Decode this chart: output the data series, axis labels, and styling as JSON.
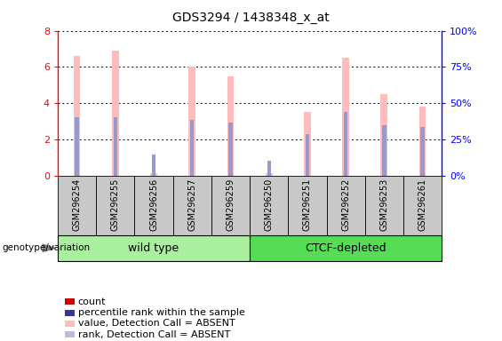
{
  "title": "GDS3294 / 1438348_x_at",
  "categories": [
    "GSM296254",
    "GSM296255",
    "GSM296256",
    "GSM296257",
    "GSM296259",
    "GSM296250",
    "GSM296251",
    "GSM296252",
    "GSM296253",
    "GSM296261"
  ],
  "pink_values": [
    6.6,
    6.9,
    0.15,
    6.0,
    5.5,
    0.15,
    3.5,
    6.5,
    4.5,
    3.8
  ],
  "blue_values": [
    3.2,
    3.2,
    1.15,
    3.1,
    2.95,
    0.8,
    2.3,
    3.5,
    2.8,
    2.7
  ],
  "group1_label": "wild type",
  "group2_label": "CTCF-depleted",
  "group1_indices": [
    0,
    1,
    2,
    3,
    4
  ],
  "group2_indices": [
    5,
    6,
    7,
    8,
    9
  ],
  "ylim_left": [
    0,
    8
  ],
  "ylim_right": [
    0,
    100
  ],
  "yticks_left": [
    0,
    2,
    4,
    6,
    8
  ],
  "yticks_right": [
    0,
    25,
    50,
    75,
    100
  ],
  "ytick_labels_left": [
    "0",
    "2",
    "4",
    "6",
    "8"
  ],
  "ytick_labels_right": [
    "0%",
    "25%",
    "50%",
    "75%",
    "100%"
  ],
  "pink_bar_width": 0.18,
  "blue_bar_width": 0.1,
  "pink_color": "#FFBCBC",
  "blue_color": "#9999CC",
  "group1_color": "#AAEEA0",
  "group2_color": "#55DD55",
  "bg_color": "#C8C8C8",
  "legend_items": [
    {
      "color": "#CC0000",
      "label": "count"
    },
    {
      "color": "#3333AA",
      "label": "percentile rank within the sample"
    },
    {
      "color": "#FFBCBC",
      "label": "value, Detection Call = ABSENT"
    },
    {
      "color": "#BBBBDD",
      "label": "rank, Detection Call = ABSENT"
    }
  ]
}
